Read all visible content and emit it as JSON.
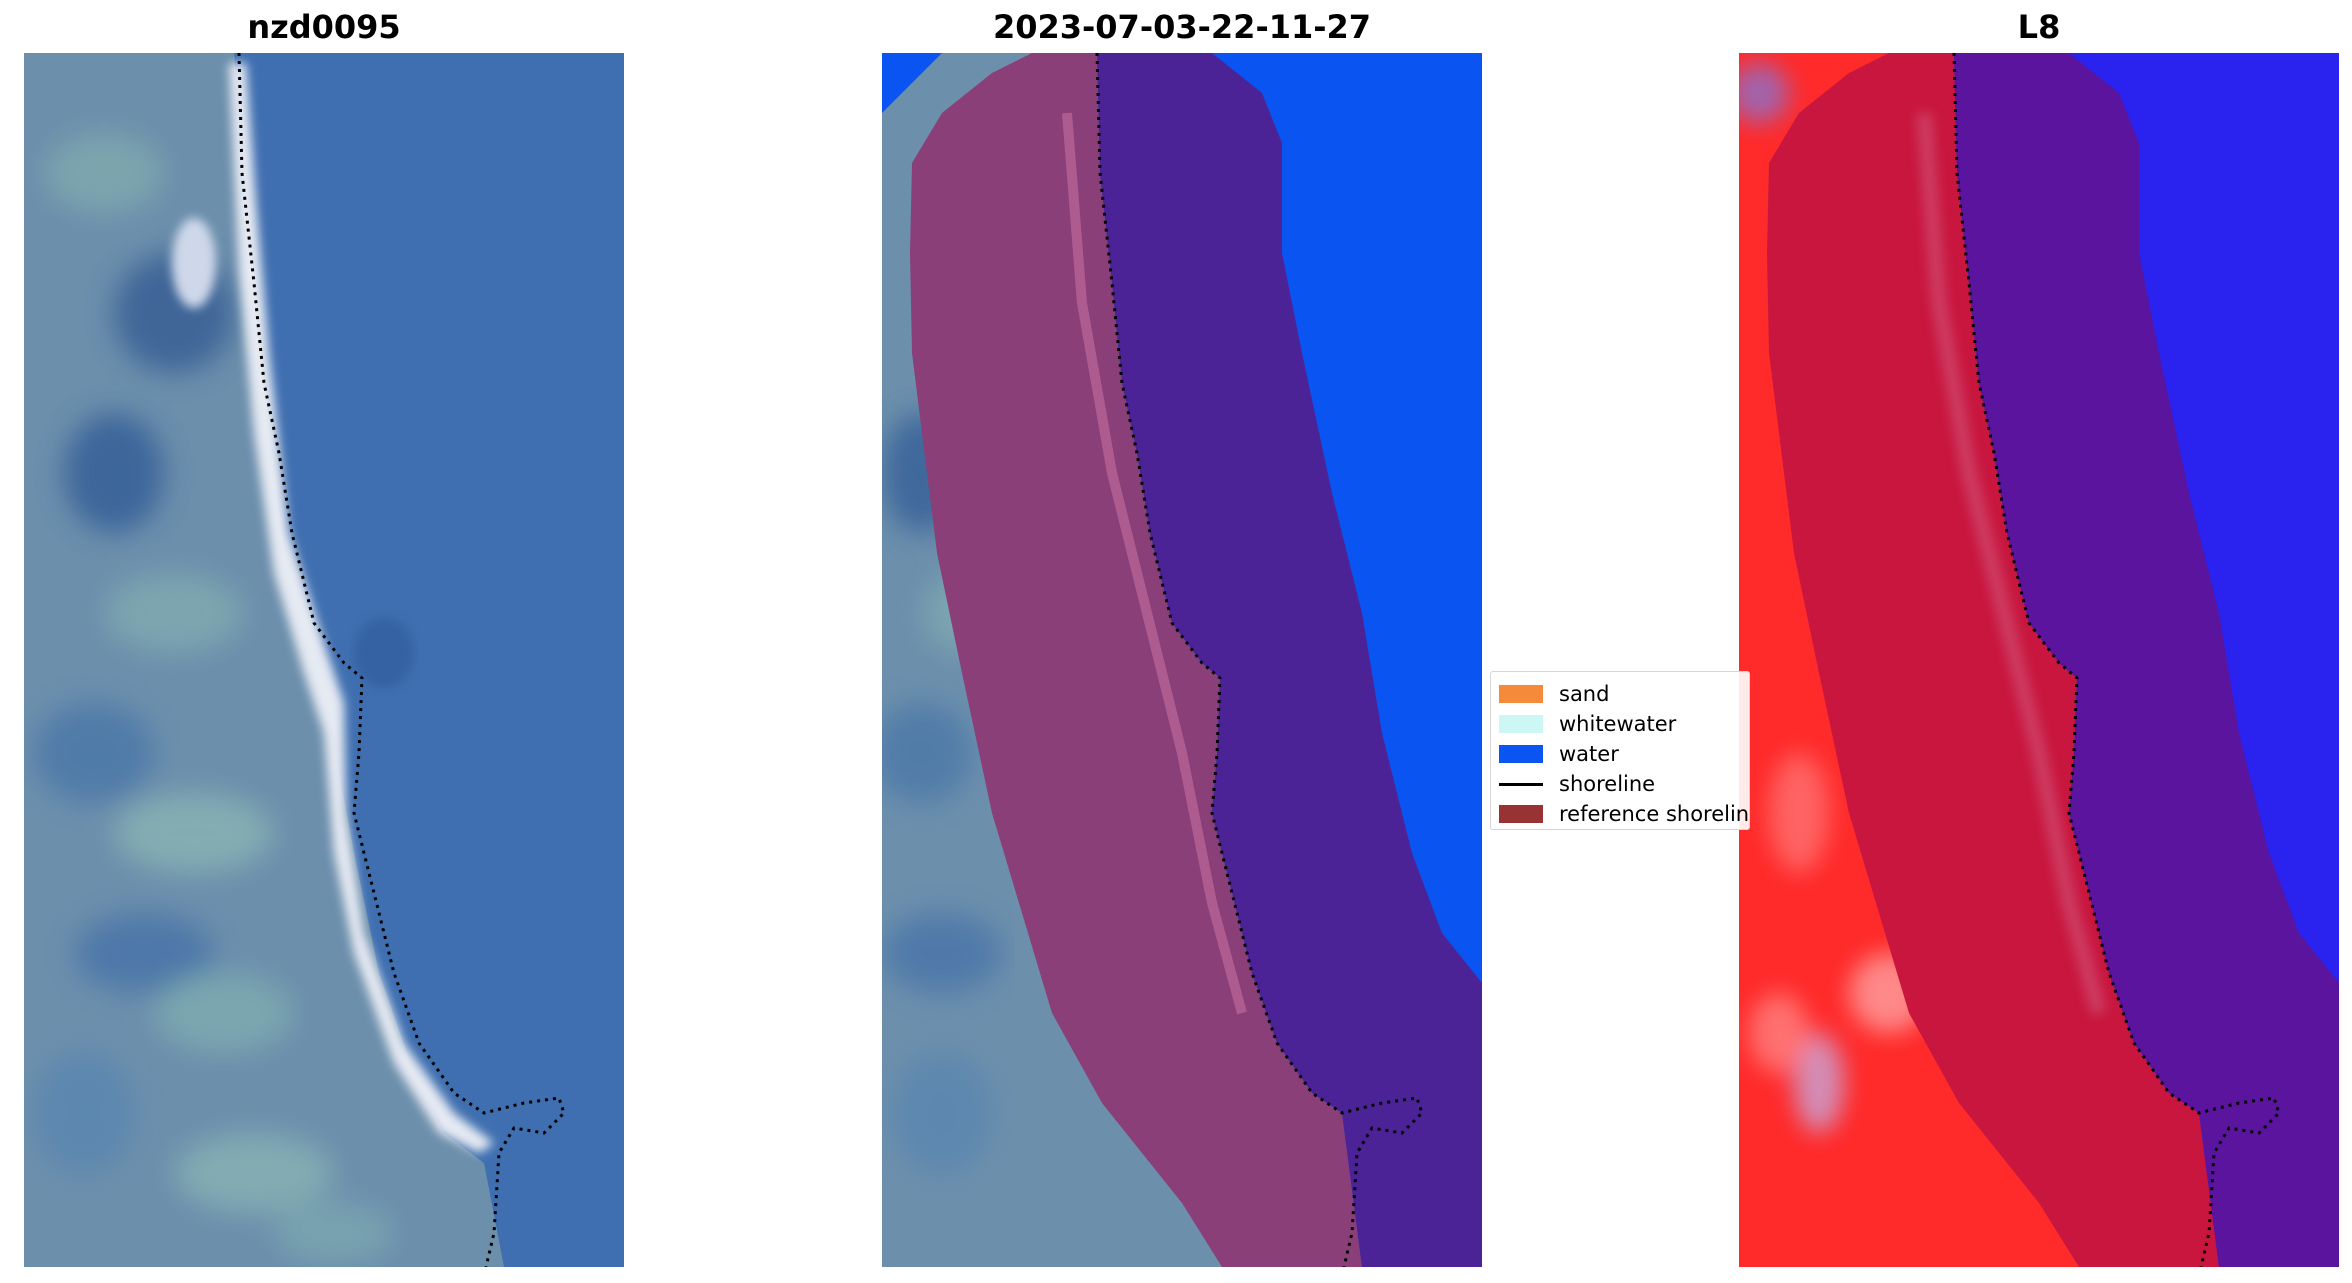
{
  "panels": [
    {
      "title": "nzd0095"
    },
    {
      "title": "2023-07-03-22-11-27"
    },
    {
      "title": "L8"
    }
  ],
  "legend": {
    "items": [
      {
        "label": "sand",
        "color": "#f58a3a"
      },
      {
        "label": "whitewater",
        "color": "#ccf7f5"
      },
      {
        "label": "water",
        "color": "#0a55f2"
      },
      {
        "label": "shoreline",
        "color": "#000000"
      },
      {
        "label": "reference shoreline",
        "color": "#993333"
      }
    ]
  },
  "colors": {
    "ocean_rgb": "#3f6fb0",
    "land_rgb": "#5e86a8",
    "beach": "#dfe4ee",
    "classified_water": "#0a55f2",
    "buffer_land": "#8a3f78",
    "buffer_water": "#4b2396",
    "ndwi_land": "#ff2a2a",
    "ndwi_buffer_land": "#c8163e",
    "ndwi_buffer_water": "#5a149e",
    "ndwi_water": "#2a23f0"
  }
}
